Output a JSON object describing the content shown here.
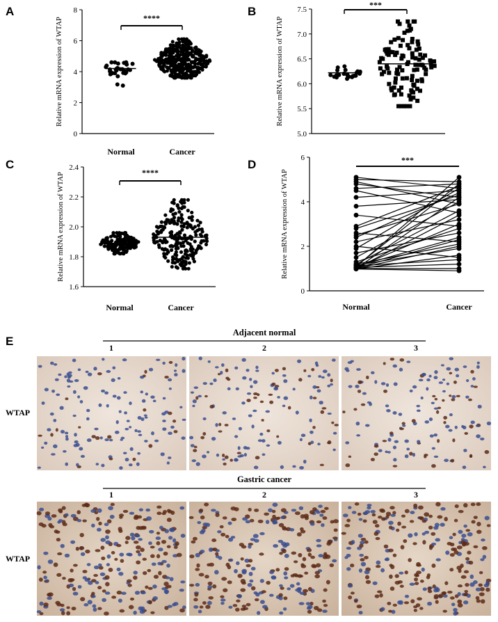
{
  "chart_data": [
    {
      "id": "A",
      "type": "scatter",
      "panel": "A",
      "ylabel": "Relative mRNA expression of WTAP",
      "categories": [
        "Normal",
        "Cancer"
      ],
      "ylim": [
        0,
        8
      ],
      "yticks": [
        0,
        2,
        4,
        6,
        8
      ],
      "significance": "****",
      "marker": "circle",
      "groups": [
        {
          "name": "Normal",
          "n": 32,
          "min": 3.1,
          "max": 4.6,
          "median": 4.2
        },
        {
          "name": "Cancer",
          "n": 375,
          "min": 3.6,
          "max": 6.1,
          "median": 4.7
        }
      ]
    },
    {
      "id": "B",
      "type": "scatter",
      "panel": "B",
      "ylabel": "Relative mRNA expression of WTAP",
      "categories": [
        "Normal",
        "Cancer"
      ],
      "ylim": [
        5.0,
        7.5
      ],
      "yticks": [
        5.0,
        5.5,
        6.0,
        6.5,
        7.0,
        7.5
      ],
      "significance": "***",
      "marker": "circle-square",
      "groups": [
        {
          "name": "Normal",
          "n": 24,
          "min": 6.1,
          "max": 6.35,
          "median": 6.22
        },
        {
          "name": "Cancer",
          "n": 110,
          "min": 5.55,
          "max": 7.25,
          "median": 6.4
        }
      ]
    },
    {
      "id": "C",
      "type": "scatter",
      "panel": "C",
      "ylabel": "Relative mRNA expression of WTAP",
      "categories": [
        "Normal",
        "Cancer"
      ],
      "ylim": [
        1.6,
        2.4
      ],
      "yticks": [
        1.6,
        1.8,
        2.0,
        2.2,
        2.4
      ],
      "significance": "****",
      "marker": "circle",
      "groups": [
        {
          "name": "Normal",
          "n": 160,
          "min": 1.82,
          "max": 1.96,
          "median": 1.89
        },
        {
          "name": "Cancer",
          "n": 230,
          "min": 1.72,
          "max": 2.18,
          "median": 1.93
        }
      ]
    },
    {
      "id": "D",
      "type": "line",
      "panel": "D",
      "ylabel": "Relative mRNA expression of WTAP",
      "categories": [
        "Normal",
        "Cancer"
      ],
      "ylim": [
        0,
        6
      ],
      "yticks": [
        0,
        2,
        4,
        6
      ],
      "significance": "***",
      "pairs": [
        [
          5.1,
          4.6
        ],
        [
          5.0,
          4.9
        ],
        [
          4.9,
          3.9
        ],
        [
          4.8,
          4.2
        ],
        [
          4.6,
          4.8
        ],
        [
          4.5,
          3.5
        ],
        [
          4.2,
          4.5
        ],
        [
          3.8,
          4.1
        ],
        [
          3.4,
          2.9
        ],
        [
          2.9,
          4.7
        ],
        [
          2.8,
          4.3
        ],
        [
          2.6,
          2.2
        ],
        [
          2.5,
          3.9
        ],
        [
          2.4,
          4.4
        ],
        [
          2.2,
          3.2
        ],
        [
          2.0,
          1.5
        ],
        [
          1.9,
          4.6
        ],
        [
          1.7,
          2.6
        ],
        [
          1.5,
          4.0
        ],
        [
          1.3,
          2.8
        ],
        [
          1.2,
          3.6
        ],
        [
          1.15,
          1.9
        ],
        [
          1.1,
          4.8
        ],
        [
          1.1,
          2.4
        ],
        [
          1.05,
          3.0
        ],
        [
          1.05,
          1.2
        ],
        [
          1.0,
          4.2
        ],
        [
          1.0,
          2.0
        ],
        [
          1.0,
          1.0
        ],
        [
          1.0,
          3.4
        ],
        [
          0.98,
          1.6
        ],
        [
          0.98,
          0.9
        ],
        [
          1.02,
          2.3
        ],
        [
          1.08,
          5.1
        ],
        [
          1.12,
          1.4
        ],
        [
          1.2,
          2.1
        ]
      ]
    }
  ],
  "panel_e": {
    "letter": "E",
    "row_label": "WTAP",
    "sections": [
      {
        "title": "Adjacent normal",
        "numbers": [
          "1",
          "2",
          "3"
        ]
      },
      {
        "title": "Gastric cancer",
        "numbers": [
          "1",
          "2",
          "3"
        ]
      }
    ]
  },
  "colors": {
    "points": "#000000",
    "axis": "#000000",
    "tissue_bg": "#e9ddd3",
    "nuclei_blue": "#3a4d8f",
    "nuclei_brown": "#5c2a17"
  }
}
